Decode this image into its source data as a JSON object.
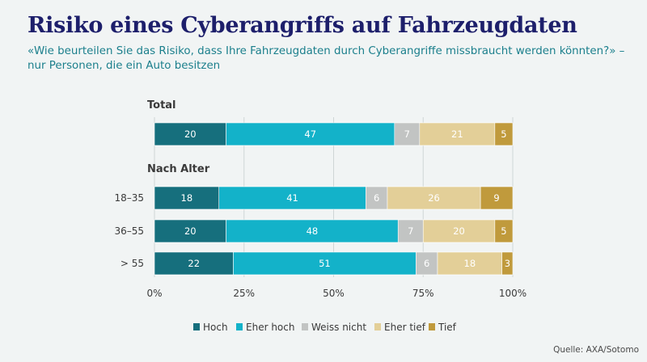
{
  "header": {
    "title": "Risiko eines Cyberangriffs auf Fahrzeugdaten",
    "subtitle": "«Wie beurteilen Sie das Risiko, dass Ihre Fahrzeugdaten durch Cyberangriffe missbraucht werden könnten?» – nur Personen, die ein Auto besitzen"
  },
  "source": "Quelle: AXA/Sotomo",
  "colors": {
    "Hoch": "#166f7d",
    "Eher hoch": "#13b2c9",
    "Weiss nicht": "#c2c4c3",
    "Eher tief": "#e3cf98",
    "Tief": "#c09a3c"
  },
  "chart_data": {
    "type": "bar",
    "orientation": "horizontal",
    "stacked": true,
    "xlim": [
      0,
      100
    ],
    "xticks": [
      "0%",
      "25%",
      "50%",
      "75%",
      "100%"
    ],
    "grid": true,
    "legend_position": "bottom",
    "groups": [
      {
        "label": "Total",
        "categories": [
          ""
        ]
      },
      {
        "label": "Nach Alter",
        "categories": [
          "18–35",
          "36–55",
          "> 55"
        ]
      }
    ],
    "series": [
      {
        "name": "Hoch",
        "values": [
          20,
          18,
          20,
          22
        ]
      },
      {
        "name": "Eher hoch",
        "values": [
          47,
          41,
          48,
          51
        ]
      },
      {
        "name": "Weiss nicht",
        "values": [
          7,
          6,
          7,
          6
        ]
      },
      {
        "name": "Eher tief",
        "values": [
          21,
          26,
          20,
          18
        ]
      },
      {
        "name": "Tief",
        "values": [
          5,
          9,
          5,
          3
        ]
      }
    ]
  }
}
